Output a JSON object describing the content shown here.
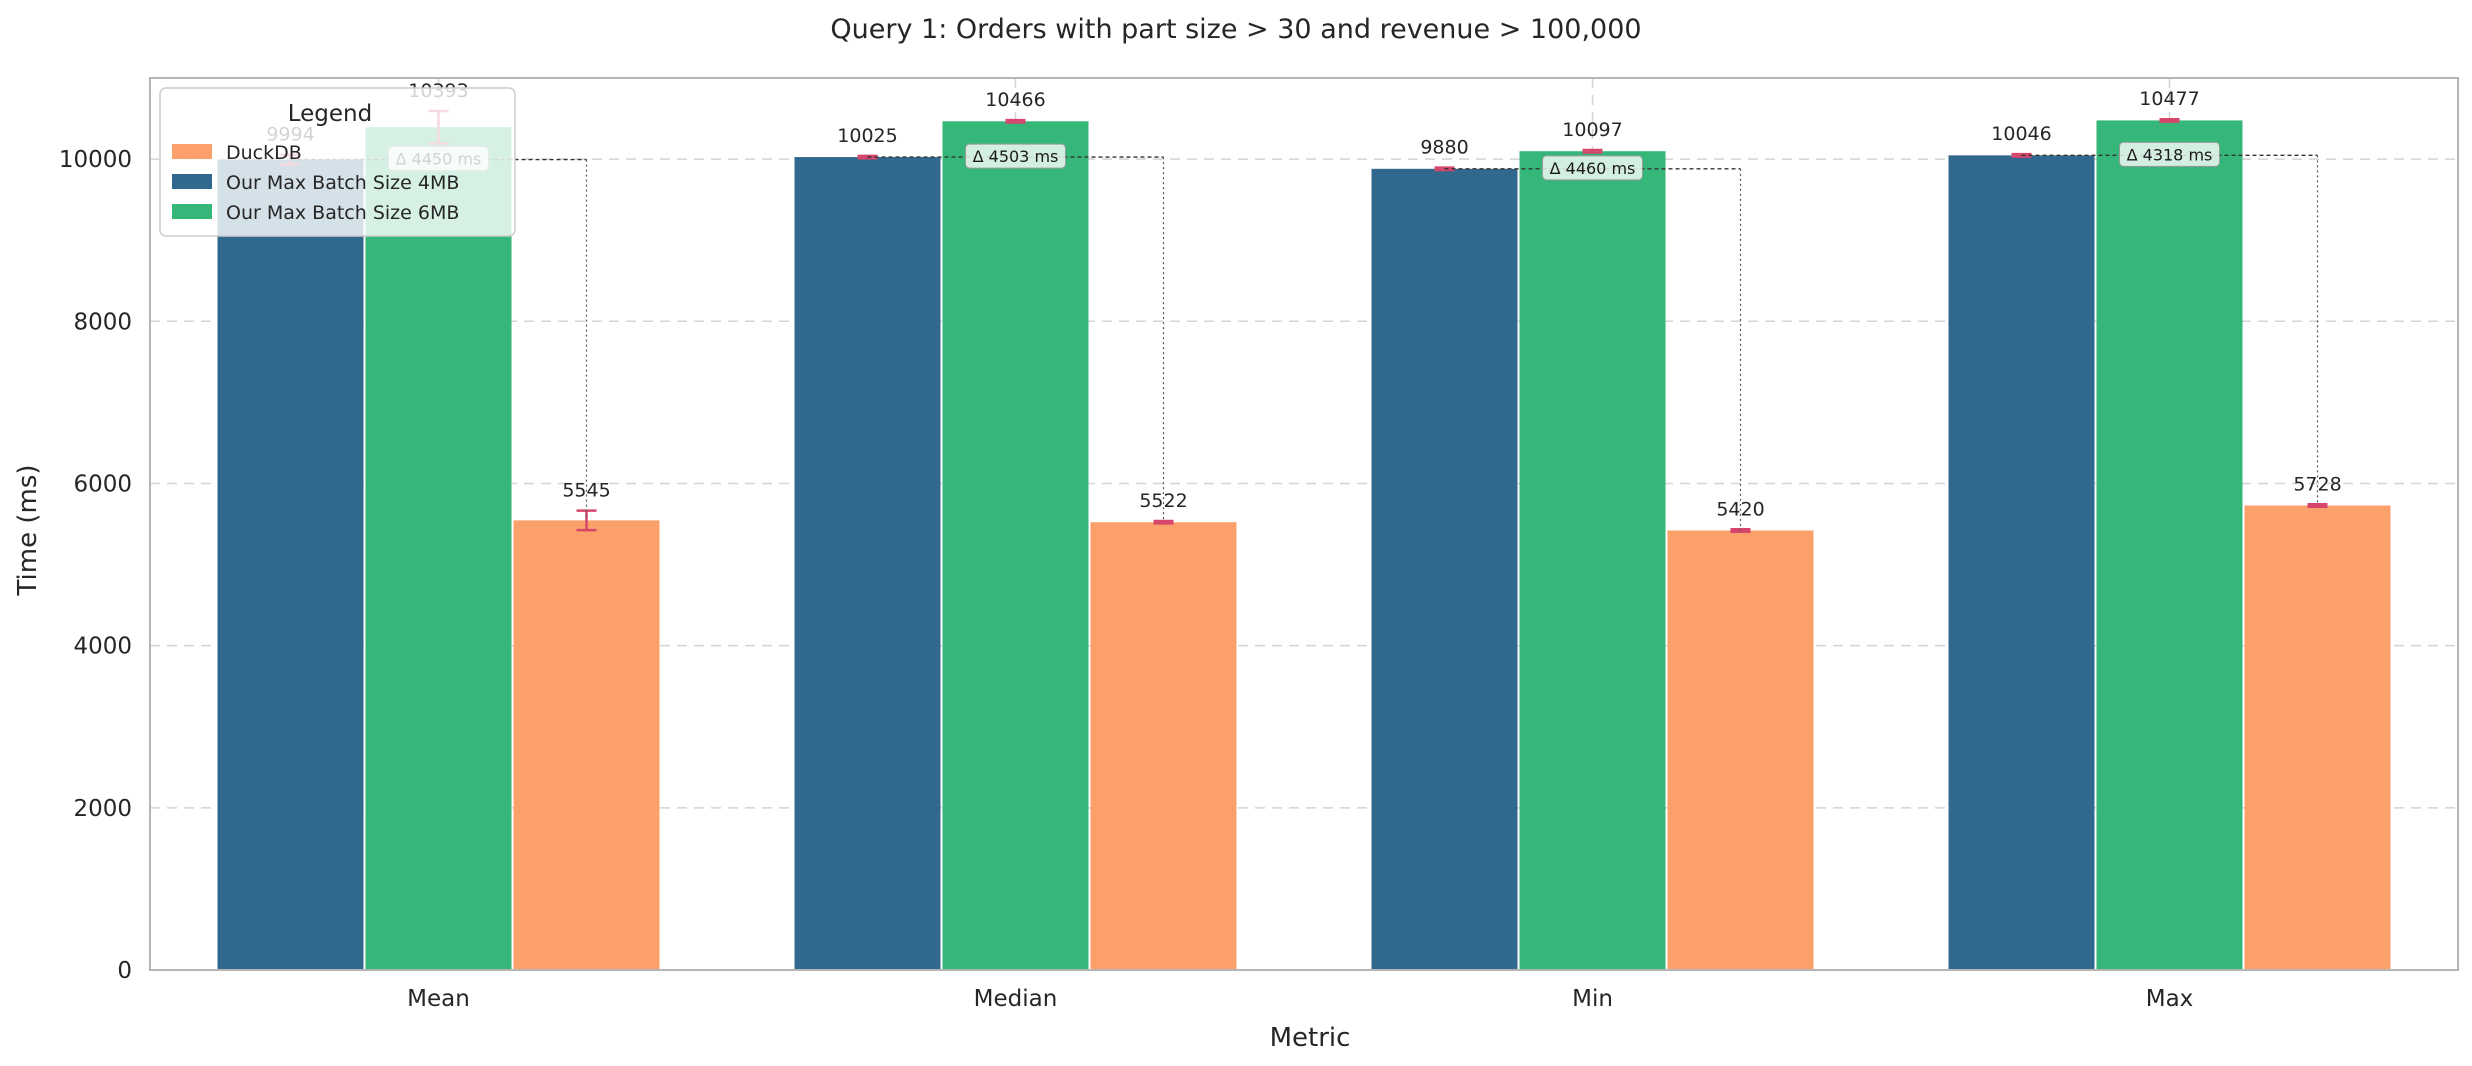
{
  "chart_data": {
    "type": "bar",
    "title": "Query 1: Orders with part size > 30 and revenue > 100,000",
    "xlabel": "Metric",
    "ylabel": "Time (ms)",
    "ylim": [
      0,
      11000
    ],
    "yticks": [
      0,
      2000,
      4000,
      6000,
      8000,
      10000
    ],
    "grid": true,
    "legend": {
      "title": "Legend",
      "position": "top-left",
      "entries": [
        "DuckDB",
        "Our Max Batch Size 4MB",
        "Our Max Batch Size 6MB"
      ]
    },
    "categories": [
      "Mean",
      "Median",
      "Min",
      "Max"
    ],
    "series": [
      {
        "name": "Our Max Batch Size 4MB",
        "color": "#31688e",
        "values": [
          9994,
          10025,
          9880,
          10046
        ],
        "labels": [
          "9994",
          "10025",
          "9880",
          "10046"
        ],
        "errors": [
          60,
          15,
          15,
          15
        ]
      },
      {
        "name": "Our Max Batch Size 6MB",
        "color": "#35b779",
        "values": [
          10393,
          10466,
          10097,
          10477
        ],
        "labels": [
          "10393",
          "10466",
          "10097",
          "10477"
        ],
        "errors": [
          200,
          15,
          15,
          15
        ]
      },
      {
        "name": "DuckDB",
        "color": "#fca06b",
        "values": [
          5545,
          5522,
          5420,
          5728
        ],
        "labels": [
          "5545",
          "5522",
          "5420",
          "5728"
        ],
        "errors": [
          120,
          15,
          15,
          15
        ]
      }
    ],
    "annotations": [
      {
        "category": "Mean",
        "text": "Δ 4450 ms",
        "from": 9994,
        "to": 5545
      },
      {
        "category": "Median",
        "text": "Δ 4503 ms",
        "from": 10025,
        "to": 5522
      },
      {
        "category": "Min",
        "text": "Δ 4460 ms",
        "from": 9880,
        "to": 5420
      },
      {
        "category": "Max",
        "text": "Δ 4318 ms",
        "from": 10046,
        "to": 5728
      }
    ],
    "colors": {
      "error_bar": "#d6456b",
      "grid": "#d4d4d4",
      "axis": "#b5b5b5"
    }
  }
}
